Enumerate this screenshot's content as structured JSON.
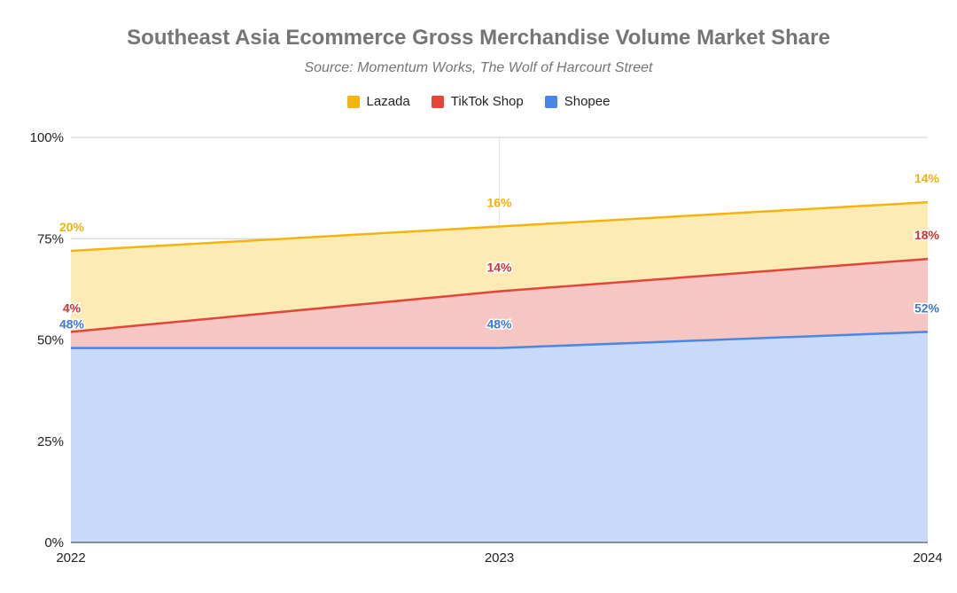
{
  "chart_data": {
    "type": "area",
    "stacked": true,
    "title": "Southeast Asia Ecommerce Gross Merchandise Volume Market Share",
    "subtitle": "Source: Momentum Works, The Wolf of Harcourt Street",
    "x": [
      "2022",
      "2023",
      "2024"
    ],
    "ylim": [
      0,
      100
    ],
    "yticks": [
      "0%",
      "25%",
      "50%",
      "75%",
      "100%"
    ],
    "grid": true,
    "legend_position": "top",
    "legend_order": [
      "Lazada",
      "TikTok Shop",
      "Shopee"
    ],
    "series": [
      {
        "name": "Shopee",
        "values": [
          48,
          48,
          52
        ],
        "labels": [
          "48%",
          "48%",
          "52%"
        ],
        "line_color": "#4a86e8",
        "fill_color": "#c9daf8",
        "label_color": "#3c78d8"
      },
      {
        "name": "TikTok Shop",
        "values": [
          4,
          14,
          18
        ],
        "labels": [
          "4%",
          "14%",
          "18%"
        ],
        "line_color": "#e2453a",
        "fill_color": "#f6c6c3",
        "label_color": "#cc3333"
      },
      {
        "name": "Lazada",
        "values": [
          20,
          16,
          14
        ],
        "labels": [
          "20%",
          "16%",
          "14%"
        ],
        "line_color": "#f3b40c",
        "fill_color": "#fcebb5",
        "label_color": "#f1b10a"
      }
    ]
  }
}
